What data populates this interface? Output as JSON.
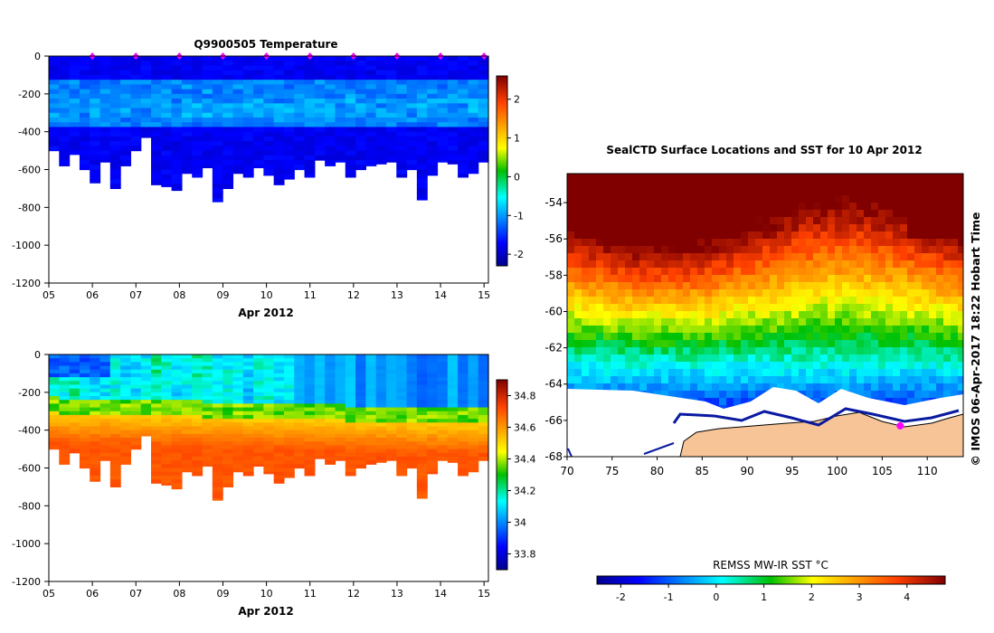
{
  "chart_data": [
    {
      "id": "temperature",
      "type": "heatmap",
      "title": "Q9900505  Temperature",
      "xlabel": "Apr 2012",
      "xtick_labels": [
        "05",
        "06",
        "07",
        "08",
        "09",
        "10",
        "11",
        "12",
        "13",
        "14",
        "15"
      ],
      "xlim": [
        5,
        15.1
      ],
      "ylabel": "",
      "ytick_values": [
        0,
        -200,
        -400,
        -600,
        -800,
        -1000,
        -1200
      ],
      "ytick_labels": [
        "0",
        "-200",
        "-400",
        "-600",
        "-800",
        "-1000",
        "-1200"
      ],
      "ylim": [
        -1200,
        0
      ],
      "marker_days": [
        6,
        7,
        8,
        9,
        10,
        11,
        12,
        13,
        14,
        15
      ],
      "profile_bottom_depth": [
        -500,
        -580,
        -520,
        -600,
        -670,
        -560,
        -700,
        -580,
        -500,
        -430,
        -680,
        -690,
        -710,
        -620,
        -640,
        -590,
        -770,
        -700,
        -620,
        -640,
        -590,
        -630,
        -680,
        -650,
        -600,
        -640,
        -550,
        -580,
        -560,
        -640,
        -600,
        -580,
        -570,
        -560,
        -640,
        -600,
        -760,
        -630,
        -560,
        -570,
        -640,
        -620,
        -560
      ],
      "colorbar": {
        "min": -2.3,
        "max": 2.6,
        "tick_values": [
          2,
          1,
          0,
          -1,
          -2
        ],
        "tick_labels": [
          "2",
          "1",
          "0",
          "-1",
          "-2"
        ]
      }
    },
    {
      "id": "salinity",
      "type": "heatmap",
      "title": "",
      "xlabel": "Apr 2012",
      "xtick_labels": [
        "05",
        "06",
        "07",
        "08",
        "09",
        "10",
        "11",
        "12",
        "13",
        "14",
        "15"
      ],
      "xlim": [
        5,
        15.1
      ],
      "ytick_values": [
        0,
        -200,
        -400,
        -600,
        -800,
        -1000,
        -1200
      ],
      "ytick_labels": [
        "0",
        "-200",
        "-400",
        "-600",
        "-800",
        "-1000",
        "-1200"
      ],
      "ylim": [
        -1200,
        0
      ],
      "colorbar": {
        "min": 33.7,
        "max": 34.9,
        "tick_values": [
          34.8,
          34.6,
          34.4,
          34.2,
          34.0,
          33.8
        ],
        "tick_labels": [
          "34.8",
          "34.6",
          "34.4",
          "34.2",
          "34",
          "33.8"
        ]
      }
    },
    {
      "id": "sst_map",
      "type": "heatmap",
      "title": "SealCTD Surface Locations and SST for 10 Apr 2012",
      "xtick_labels": [
        "70",
        "75",
        "80",
        "85",
        "90",
        "95",
        "100",
        "105",
        "110"
      ],
      "xlim": [
        70,
        114
      ],
      "ytick_labels": [
        "-54",
        "-56",
        "-58",
        "-60",
        "-62",
        "-64",
        "-66",
        "-68"
      ],
      "ylim": [
        -68,
        -52.4
      ],
      "credit": "© IMOS 06-Apr-2017 18:22 Hobart Time",
      "colorbar": {
        "label": "REMSS MW-IR SST °C",
        "min": -2.5,
        "max": 4.8,
        "tick_values": [
          -2,
          -1,
          0,
          1,
          2,
          3,
          4
        ],
        "tick_labels": [
          "-2",
          "-1",
          "0",
          "1",
          "2",
          "3",
          "4"
        ]
      },
      "track_points": [
        [
          107,
          -66.3
        ]
      ]
    }
  ],
  "colors": {
    "marker": "#ff00ff",
    "land": "#f7c497",
    "ice": "#ffffff"
  }
}
